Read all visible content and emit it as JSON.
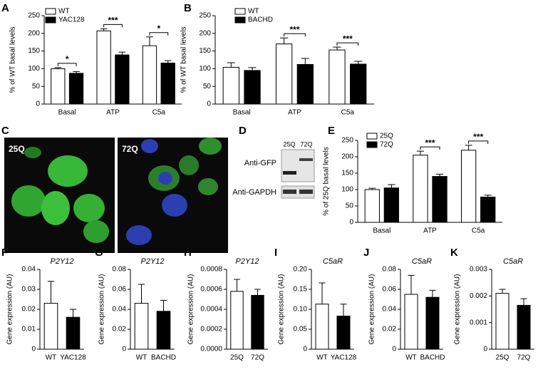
{
  "chart_data": [
    {
      "type": "bar",
      "panel": "A",
      "ylabel": "% of WT basal levels",
      "categories": [
        "Basal",
        "ATP",
        "C5a"
      ],
      "series": [
        {
          "name": "WT",
          "color": "#ffffff",
          "values": [
            100,
            207,
            165
          ],
          "errors": [
            3,
            6,
            25
          ]
        },
        {
          "name": "YAC128",
          "color": "#000000",
          "values": [
            87,
            139,
            116
          ],
          "errors": [
            5,
            8,
            7
          ]
        }
      ],
      "significance": [
        "*",
        "***",
        "*"
      ],
      "ylim": [
        0,
        250
      ],
      "yticks": [
        0,
        50,
        100,
        150,
        200,
        250
      ],
      "legend": "upper left"
    },
    {
      "type": "bar",
      "panel": "B",
      "ylabel": "% of WT basal levels",
      "categories": [
        "Basal",
        "ATP",
        "C5a"
      ],
      "series": [
        {
          "name": "WT",
          "color": "#ffffff",
          "values": [
            104,
            170,
            153
          ],
          "errors": [
            13,
            17,
            8
          ]
        },
        {
          "name": "BACHD",
          "color": "#000000",
          "values": [
            95,
            112,
            113
          ],
          "errors": [
            8,
            17,
            8
          ]
        }
      ],
      "significance": [
        null,
        "***",
        "***"
      ],
      "ylim": [
        0,
        250
      ],
      "yticks": [
        0,
        50,
        100,
        150,
        200,
        250
      ],
      "legend": "upper left"
    },
    {
      "type": "bar",
      "panel": "E",
      "ylabel": "% of 25Q basal levels",
      "categories": [
        "Basal",
        "ATP",
        "C5a"
      ],
      "series": [
        {
          "name": "25Q",
          "color": "#ffffff",
          "values": [
            100,
            205,
            220
          ],
          "errors": [
            4,
            12,
            15
          ]
        },
        {
          "name": "72Q",
          "color": "#000000",
          "values": [
            105,
            140,
            77
          ],
          "errors": [
            10,
            7,
            6
          ]
        }
      ],
      "significance": [
        null,
        "***",
        "***"
      ],
      "ylim": [
        0,
        250
      ],
      "yticks": [
        0,
        50,
        100,
        150,
        200,
        250
      ],
      "legend": "upper left"
    },
    {
      "type": "bar",
      "panel": "F",
      "title": "P2Y12",
      "ylabel": "Gene expression (AU)",
      "categories": [
        "WT",
        "YAC128"
      ],
      "values": [
        0.023,
        0.016
      ],
      "errors": [
        0.011,
        0.004
      ],
      "colors": [
        "#ffffff",
        "#000000"
      ],
      "ylim": [
        0,
        0.04
      ],
      "yticks": [
        0,
        0.01,
        0.02,
        0.03,
        0.04
      ]
    },
    {
      "type": "bar",
      "panel": "G",
      "title": "P2Y12",
      "ylabel": "Gene expression (AU)",
      "categories": [
        "WT",
        "BACHD"
      ],
      "values": [
        0.046,
        0.038
      ],
      "errors": [
        0.019,
        0.011
      ],
      "colors": [
        "#ffffff",
        "#000000"
      ],
      "ylim": [
        0,
        0.08
      ],
      "yticks": [
        0,
        0.02,
        0.04,
        0.06,
        0.08
      ]
    },
    {
      "type": "bar",
      "panel": "H",
      "title": "P2Y12",
      "ylabel": "Gene expression (AU)",
      "categories": [
        "25Q",
        "72Q"
      ],
      "values": [
        0.00058,
        0.00054
      ],
      "errors": [
        0.00012,
        6e-05
      ],
      "colors": [
        "#ffffff",
        "#000000"
      ],
      "ylim": [
        0,
        0.0008
      ],
      "yticks": [
        {
          "value": 0,
          "label": "0.0000"
        },
        0.0002,
        0.0004,
        0.0006,
        0.0008
      ]
    },
    {
      "type": "bar",
      "panel": "I",
      "title": "C5aR",
      "ylabel": "Gene expression (AU)",
      "categories": [
        "WT",
        "YAC128"
      ],
      "values": [
        0.113,
        0.083
      ],
      "errors": [
        0.053,
        0.03
      ],
      "colors": [
        "#ffffff",
        "#000000"
      ],
      "ylim": [
        0,
        0.2
      ],
      "yticks": [
        0,
        0.05,
        {
          "value": 0.1,
          "label": "0.10"
        },
        0.15,
        {
          "value": 0.2,
          "label": "0.20"
        }
      ]
    },
    {
      "type": "bar",
      "panel": "J",
      "title": "C5aR",
      "ylabel": "Gene expression (AU)",
      "categories": [
        "WT",
        "BACHD"
      ],
      "values": [
        0.055,
        0.052
      ],
      "errors": [
        0.019,
        0.007
      ],
      "colors": [
        "#ffffff",
        "#000000"
      ],
      "ylim": [
        0,
        0.08
      ],
      "yticks": [
        0,
        0.02,
        0.04,
        0.06,
        0.08
      ]
    },
    {
      "type": "bar",
      "panel": "K",
      "title": "C5aR",
      "ylabel": "Gene expression (AU)",
      "categories": [
        "25Q",
        "72Q"
      ],
      "values": [
        0.0021,
        0.00165
      ],
      "errors": [
        0.00015,
        0.00025
      ],
      "colors": [
        "#ffffff",
        "#000000"
      ],
      "ylim": [
        0,
        0.003
      ],
      "yticks": [
        0,
        0.001,
        0.002,
        0.003
      ]
    }
  ],
  "image_panels": {
    "C": {
      "panel": "C",
      "labels": [
        "25Q",
        "72Q"
      ]
    },
    "D": {
      "panel": "D",
      "lanes": [
        "25Q",
        "72Q"
      ],
      "rows": [
        "Anti-GFP",
        "Anti-GAPDH"
      ]
    }
  }
}
